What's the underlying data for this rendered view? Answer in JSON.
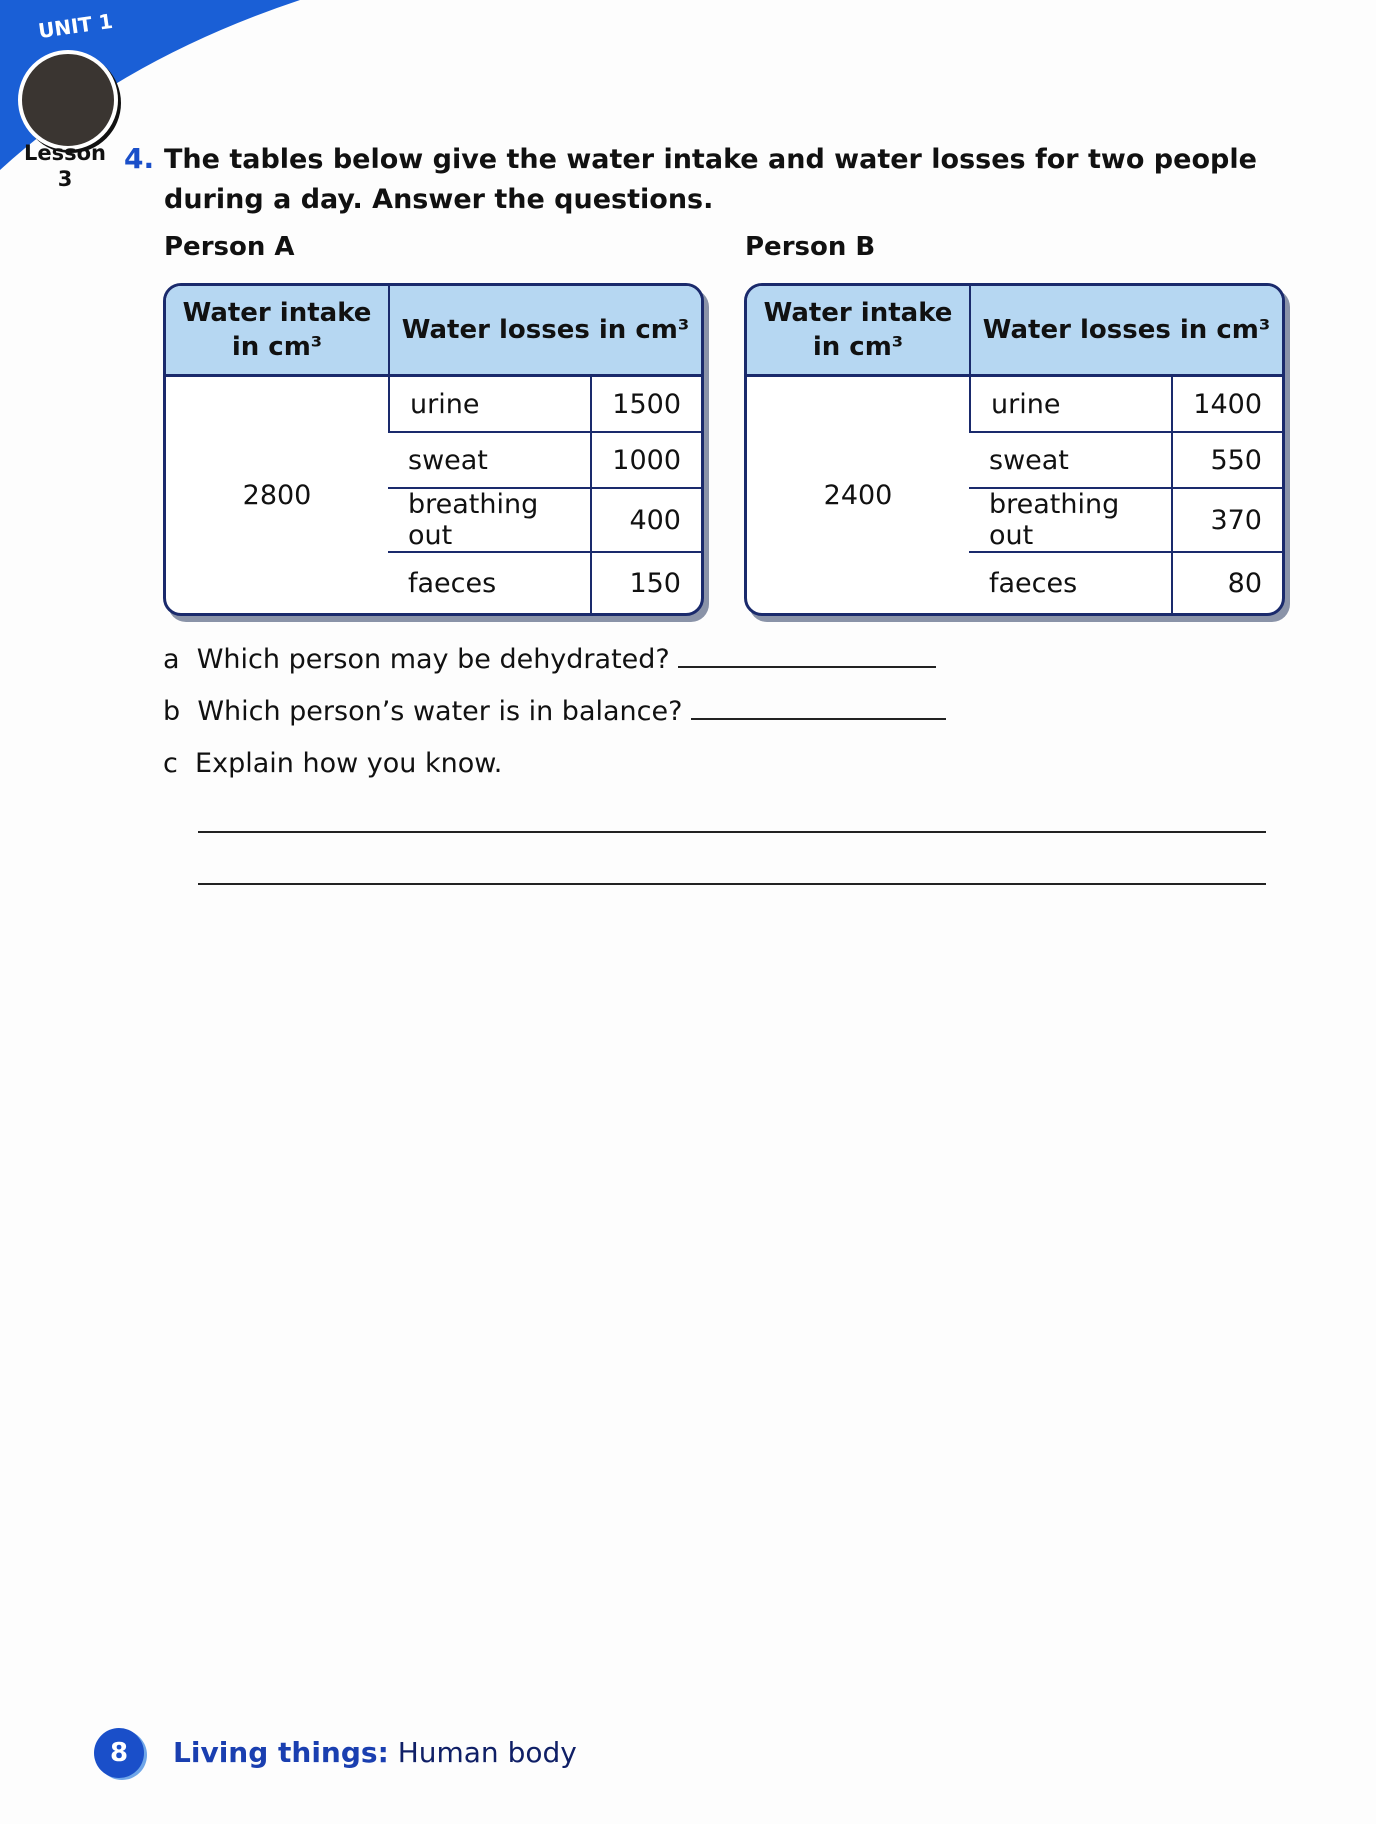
{
  "header": {
    "unit": "UNIT 1",
    "lesson": "Lesson",
    "lesson_number": "3",
    "accent": "#1a4fc9"
  },
  "question": {
    "number": "4.",
    "text": "The tables below give the water intake and water losses for two people during a day. Answer the questions."
  },
  "tables": [
    {
      "label": "Person A",
      "headers": [
        "Water intake in cm³",
        "Water losses in cm³"
      ],
      "intake": "2800",
      "losses": [
        {
          "item": "urine",
          "value": "1500"
        },
        {
          "item": "sweat",
          "value": "1000"
        },
        {
          "item": "breathing out",
          "value": "400"
        },
        {
          "item": "faeces",
          "value": "150"
        }
      ]
    },
    {
      "label": "Person B",
      "headers": [
        "Water intake in cm³",
        "Water losses in cm³"
      ],
      "intake": "2400",
      "losses": [
        {
          "item": "urine",
          "value": "1400"
        },
        {
          "item": "sweat",
          "value": "550"
        },
        {
          "item": "breathing out",
          "value": "370"
        },
        {
          "item": "faeces",
          "value": "80"
        }
      ]
    }
  ],
  "subquestions": [
    {
      "letter": "a",
      "text": "Which person may be dehydrated?"
    },
    {
      "letter": "b",
      "text": "Which person’s water is in balance?"
    },
    {
      "letter": "c",
      "text": "Explain how you know."
    }
  ],
  "footer": {
    "page": "8",
    "topic": "Living things:",
    "subtopic": "Human body"
  }
}
